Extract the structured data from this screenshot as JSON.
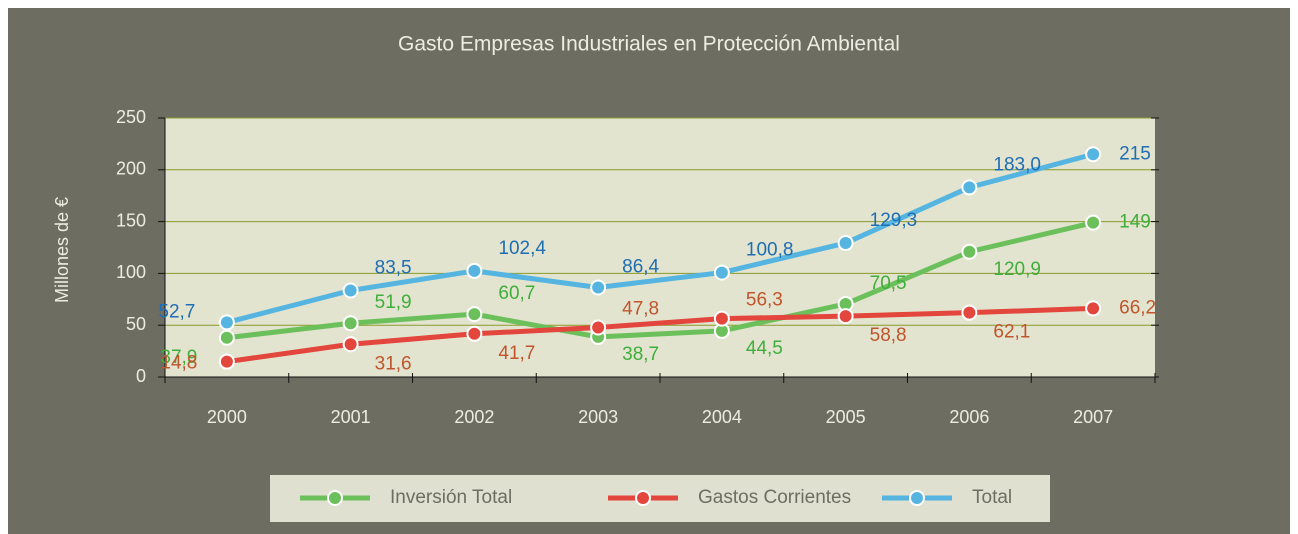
{
  "chart_data": {
    "type": "line",
    "title": "Gasto Empresas Industriales en Protección Ambiental",
    "y_label": "Millones de €",
    "categories": [
      "2000",
      "2001",
      "2002",
      "2003",
      "2004",
      "2005",
      "2006",
      "2007"
    ],
    "series": [
      {
        "name": "Inversión Total",
        "color": "#6cc05c",
        "label_color": "#3fae3a",
        "values": [
          37.9,
          51.9,
          60.7,
          38.7,
          44.5,
          70.5,
          120.9,
          149
        ],
        "value_labels": [
          "37,9",
          "51,9",
          "60,7",
          "38,7",
          "44,5",
          "70,5",
          "120,9",
          "149"
        ]
      },
      {
        "name": "Gastos Corrientes",
        "color": "#e2463c",
        "label_color": "#c0552c",
        "values": [
          14.8,
          31.6,
          41.7,
          47.8,
          56.3,
          58.8,
          62.1,
          66.2
        ],
        "value_labels": [
          "14,8",
          "31,6",
          "41,7",
          "47,8",
          "56,3",
          "58,8",
          "62,1",
          "66,2"
        ]
      },
      {
        "name": "Total",
        "color": "#55b5e0",
        "label_color": "#1f6db3",
        "values": [
          52.7,
          83.5,
          102.4,
          86.4,
          100.8,
          129.3,
          183.0,
          215
        ],
        "value_labels": [
          "52,7",
          "83,5",
          "102,4",
          "86,4",
          "100,8",
          "129,3",
          "183,0",
          "215"
        ]
      }
    ],
    "ylim": [
      0,
      250
    ],
    "yticks": [
      0,
      50,
      100,
      150,
      200,
      250
    ],
    "grid": true,
    "legend": "bottom"
  }
}
